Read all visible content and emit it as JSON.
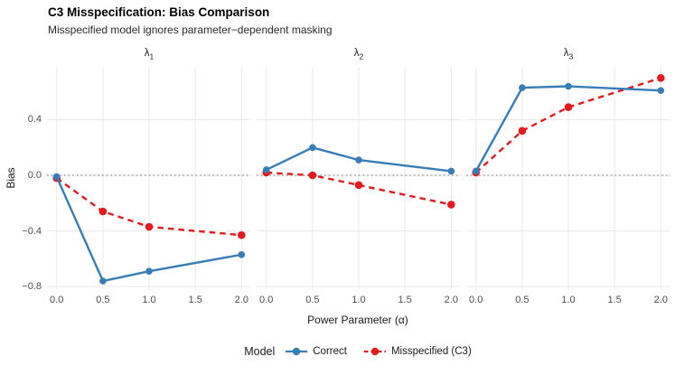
{
  "chart_data": {
    "type": "line",
    "title": "C3 Misspecification: Bias Comparison",
    "subtitle": "Misspecified model ignores parameter−dependent masking",
    "xlabel": "Power Parameter (α)",
    "ylabel": "Bias",
    "x": [
      0,
      0.5,
      1,
      2
    ],
    "x_tick_values": [
      0,
      0.5,
      1,
      1.5,
      2
    ],
    "x_ticks": [
      "0.0",
      "0.5",
      "1.0",
      "1.5",
      "2.0"
    ],
    "y_tick_values": [
      0.4,
      0,
      -0.4,
      -0.8
    ],
    "y_ticks": [
      "0.4",
      "0.0",
      "−0.4",
      "−0.8"
    ],
    "xlim": [
      -0.105,
      2.105
    ],
    "ylim": [
      -0.825,
      0.78
    ],
    "zero_reference_line": 0,
    "grid": true,
    "legend_position": "bottom",
    "facets": [
      {
        "label_base": "λ",
        "label_sub": "1",
        "series": [
          {
            "name": "Correct",
            "color": "#377EB8",
            "dash": false,
            "y": [
              -0.01,
              -0.76,
              -0.69,
              -0.57
            ]
          },
          {
            "name": "Misspecified (C3)",
            "color": "#E41A1C",
            "dash": true,
            "y": [
              -0.02,
              -0.26,
              -0.37,
              -0.43
            ]
          }
        ]
      },
      {
        "label_base": "λ",
        "label_sub": "2",
        "series": [
          {
            "name": "Correct",
            "color": "#377EB8",
            "dash": false,
            "y": [
              0.04,
              0.2,
              0.11,
              0.03
            ]
          },
          {
            "name": "Misspecified (C3)",
            "color": "#E41A1C",
            "dash": true,
            "y": [
              0.02,
              0.0,
              -0.07,
              -0.21
            ]
          }
        ]
      },
      {
        "label_base": "λ",
        "label_sub": "3",
        "series": [
          {
            "name": "Correct",
            "color": "#377EB8",
            "dash": false,
            "y": [
              0.03,
              0.63,
              0.64,
              0.61
            ]
          },
          {
            "name": "Misspecified (C3)",
            "color": "#E41A1C",
            "dash": true,
            "y": [
              0.02,
              0.32,
              0.49,
              0.7
            ]
          }
        ]
      }
    ],
    "colors": {
      "correct": "#377EB8",
      "misspecified": "#E41A1C",
      "grid": "#E9E9E9",
      "zero_line": "#7F7F7F",
      "axis_text": "#4D4D4D"
    }
  },
  "legend": {
    "title": "Model",
    "items": [
      {
        "label": "Correct",
        "color": "#377EB8",
        "dashed": false
      },
      {
        "label": "Misspecified (C3)",
        "color": "#E41A1C",
        "dashed": true
      }
    ]
  }
}
